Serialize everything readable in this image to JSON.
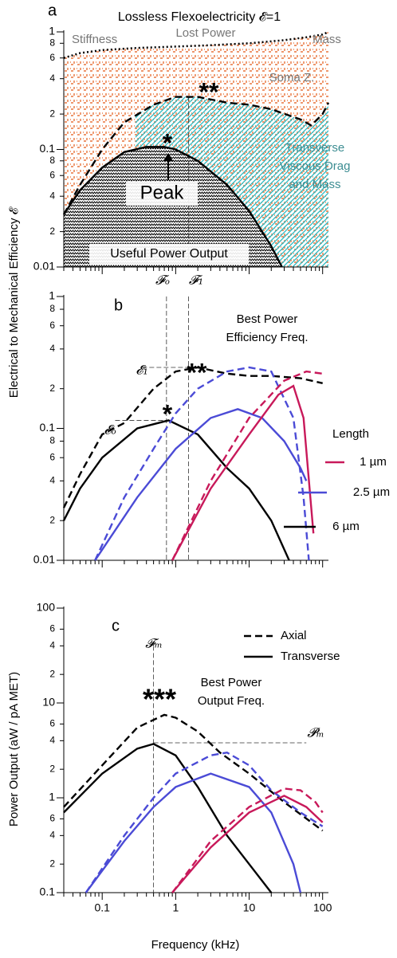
{
  "chart_data": [
    {
      "type": "line",
      "panel": "a",
      "title": "Lossless Flexoelectricity 𝓔=1",
      "ylabel": "Electrical to Mechanical Efficiency 𝓔",
      "xscale": "log",
      "yscale": "log",
      "xlim": [
        0.03,
        120
      ],
      "ylim": [
        0.01,
        1
      ],
      "xticks": [
        0.1,
        1,
        10,
        100
      ],
      "xminorticks": [
        0.03,
        0.04,
        0.05,
        0.06,
        0.07,
        0.08,
        0.09,
        0.2,
        0.3,
        0.4,
        0.5,
        0.6,
        0.7,
        0.8,
        0.9,
        2,
        3,
        4,
        5,
        6,
        7,
        8,
        9,
        20,
        30,
        40,
        50,
        60,
        70,
        80,
        90
      ],
      "yticks": [
        0.01,
        {
          "value": 0.02,
          "label": "2"
        },
        {
          "value": 0.04,
          "label": "4"
        },
        {
          "value": 0.06,
          "label": "6"
        },
        {
          "value": 0.08,
          "label": "8"
        },
        0.1,
        {
          "value": 0.2,
          "label": "2"
        },
        {
          "value": 0.4,
          "label": "4"
        },
        {
          "value": 0.6,
          "label": "6"
        },
        {
          "value": 0.8,
          "label": "8"
        },
        1
      ],
      "series": [
        {
          "color": "#000000",
          "style": "dotted",
          "fill": "#e8743b",
          "x": [
            0.03,
            0.05,
            0.1,
            0.3,
            1,
            3,
            10,
            30,
            60,
            100,
            120
          ],
          "values": [
            0.6,
            0.66,
            0.7,
            0.73,
            0.75,
            0.77,
            0.8,
            0.85,
            0.9,
            0.95,
            1
          ]
        },
        {
          "color": "#000000",
          "style": "dashed",
          "fill": "#2bb8c0",
          "x": [
            0.03,
            0.05,
            0.1,
            0.2,
            0.5,
            1,
            2,
            5,
            10,
            20,
            50,
            70,
            100,
            120
          ],
          "values": [
            0.028,
            0.05,
            0.1,
            0.17,
            0.24,
            0.28,
            0.28,
            0.25,
            0.24,
            0.22,
            0.18,
            0.16,
            0.2,
            0.25
          ]
        },
        {
          "color": "#000000",
          "style": "solid",
          "fill": "#000000",
          "x": [
            0.03,
            0.05,
            0.1,
            0.2,
            0.4,
            0.7,
            1,
            2,
            5,
            10,
            20,
            28
          ],
          "values": [
            0.028,
            0.045,
            0.07,
            0.095,
            0.105,
            0.105,
            0.1,
            0.08,
            0.05,
            0.03,
            0.015,
            0.01
          ]
        }
      ],
      "guides": [
        {
          "x": [
            1.5,
            1.5
          ],
          "y": [
            0.28,
            0.01
          ]
        }
      ],
      "annotations": [
        "Stiffness",
        "Lost Power",
        "Mass",
        "Soma Z.",
        "**",
        "*",
        "Transverse",
        "Viscous Drag",
        "and Mass",
        "Peak",
        "Useful Power Output"
      ]
    },
    {
      "type": "line",
      "panel": "b",
      "xscale": "log",
      "yscale": "log",
      "xlim": [
        0.03,
        120
      ],
      "ylim": [
        0.01,
        1
      ],
      "xticks": [
        0.1,
        1,
        10,
        100
      ],
      "xminorticks": [
        0.03,
        0.04,
        0.05,
        0.06,
        0.07,
        0.08,
        0.09,
        0.2,
        0.3,
        0.4,
        0.5,
        0.6,
        0.7,
        0.8,
        0.9,
        2,
        3,
        4,
        5,
        6,
        7,
        8,
        9,
        20,
        30,
        40,
        50,
        60,
        70,
        80,
        90
      ],
      "yticks": [
        0.01,
        {
          "value": 0.02,
          "label": "2"
        },
        {
          "value": 0.04,
          "label": "4"
        },
        {
          "value": 0.06,
          "label": "6"
        },
        {
          "value": 0.08,
          "label": "8"
        },
        0.1,
        {
          "value": 0.2,
          "label": "2"
        },
        {
          "value": 0.4,
          "label": "4"
        },
        {
          "value": 0.6,
          "label": "6"
        },
        {
          "value": 0.8,
          "label": "8"
        },
        1
      ],
      "series": [
        {
          "color": "#000000",
          "style": "dashed",
          "x": [
            0.03,
            0.05,
            0.1,
            0.2,
            0.5,
            1,
            2,
            5,
            10,
            20,
            50,
            100
          ],
          "values": [
            0.025,
            0.045,
            0.09,
            0.11,
            0.2,
            0.27,
            0.29,
            0.26,
            0.25,
            0.25,
            0.24,
            0.22
          ]
        },
        {
          "name": "6 µm",
          "color": "#000000",
          "style": "solid",
          "x": [
            0.03,
            0.05,
            0.1,
            0.3,
            0.8,
            2,
            5,
            10,
            20,
            35
          ],
          "values": [
            0.02,
            0.035,
            0.06,
            0.1,
            0.115,
            0.09,
            0.05,
            0.035,
            0.02,
            0.01
          ]
        },
        {
          "color": "#4b4bd6",
          "style": "dashed",
          "x": [
            0.08,
            0.2,
            0.5,
            1,
            2,
            5,
            10,
            20,
            40,
            55,
            65
          ],
          "values": [
            0.01,
            0.03,
            0.07,
            0.13,
            0.2,
            0.27,
            0.29,
            0.27,
            0.12,
            0.03,
            0.01
          ]
        },
        {
          "name": "2.5 µm",
          "color": "#4b4bd6",
          "style": "solid",
          "x": [
            0.08,
            0.3,
            1,
            3,
            7,
            15,
            30,
            50,
            60
          ],
          "values": [
            0.01,
            0.03,
            0.07,
            0.12,
            0.14,
            0.12,
            0.08,
            0.05,
            0.04
          ]
        },
        {
          "color": "#c8195a",
          "style": "dashed",
          "x": [
            0.9,
            3,
            10,
            30,
            60,
            100
          ],
          "values": [
            0.01,
            0.04,
            0.12,
            0.23,
            0.27,
            0.26
          ]
        },
        {
          "name": "1 µm",
          "color": "#c8195a",
          "style": "solid",
          "x": [
            0.9,
            3,
            10,
            25,
            40,
            55,
            70,
            75
          ],
          "values": [
            0.01,
            0.035,
            0.09,
            0.18,
            0.21,
            0.12,
            0.025,
            0.016
          ]
        }
      ],
      "guides": [
        {
          "x": [
            0.75,
            0.75
          ],
          "y": [
            1,
            0.01
          ]
        },
        {
          "x": [
            1.5,
            1.5
          ],
          "y": [
            1,
            0.01
          ]
        },
        {
          "x": [
            0.35,
            1.8
          ],
          "y": [
            0.29,
            0.29
          ]
        },
        {
          "x": [
            0.15,
            0.75
          ],
          "y": [
            0.115,
            0.115
          ]
        }
      ],
      "annotations": [
        "𝓕ₒ",
        "𝓕₁",
        "Best Power",
        "Efficiency Freq.",
        "𝓔₁",
        "**",
        "𝓔ₒ",
        "*",
        "Length"
      ]
    },
    {
      "type": "line",
      "panel": "c",
      "ylabel": "Power Output (aW / pA MET)",
      "xlabel": "Frequency (kHz)",
      "xscale": "log",
      "yscale": "log",
      "xlim": [
        0.03,
        120
      ],
      "ylim": [
        0.1,
        100
      ],
      "xticks": [
        0.1,
        1,
        10,
        100
      ],
      "xminorticks": [
        0.03,
        0.04,
        0.05,
        0.06,
        0.07,
        0.08,
        0.09,
        0.2,
        0.3,
        0.4,
        0.5,
        0.6,
        0.7,
        0.8,
        0.9,
        2,
        3,
        4,
        5,
        6,
        7,
        8,
        9,
        20,
        30,
        40,
        50,
        60,
        70,
        80,
        90
      ],
      "yticks": [
        0.1,
        {
          "value": 0.2,
          "label": "2"
        },
        {
          "value": 0.4,
          "label": "4"
        },
        {
          "value": 0.6,
          "label": "6"
        },
        1,
        {
          "value": 2,
          "label": "2"
        },
        {
          "value": 4,
          "label": "4"
        },
        {
          "value": 6,
          "label": "6"
        },
        10,
        {
          "value": 20,
          "label": "2"
        },
        {
          "value": 40,
          "label": "4"
        },
        {
          "value": 60,
          "label": "6"
        },
        100
      ],
      "legend": [
        {
          "label": "Axial",
          "style": "dashed"
        },
        {
          "label": "Transverse",
          "style": "solid"
        }
      ],
      "series": [
        {
          "color": "#000000",
          "style": "dashed",
          "x": [
            0.03,
            0.1,
            0.3,
            0.7,
            1,
            2,
            4,
            10,
            30,
            100
          ],
          "values": [
            0.8,
            2.2,
            5.5,
            7.5,
            7,
            5,
            3,
            1.8,
            0.9,
            0.45
          ]
        },
        {
          "color": "#000000",
          "style": "solid",
          "x": [
            0.03,
            0.1,
            0.3,
            0.5,
            1,
            2,
            5,
            10,
            20
          ],
          "values": [
            0.7,
            1.8,
            3.3,
            3.7,
            2.8,
            1.3,
            0.4,
            0.2,
            0.1
          ]
        },
        {
          "color": "#4b4bd6",
          "style": "dashed",
          "x": [
            0.06,
            0.2,
            0.5,
            1,
            3,
            5,
            10,
            20,
            50,
            100
          ],
          "values": [
            0.1,
            0.4,
            1,
            1.8,
            2.8,
            3,
            2.2,
            1.2,
            0.7,
            0.5
          ]
        },
        {
          "color": "#4b4bd6",
          "style": "solid",
          "x": [
            0.06,
            0.2,
            0.5,
            1,
            3,
            10,
            20,
            40,
            50
          ],
          "values": [
            0.1,
            0.35,
            0.8,
            1.3,
            1.8,
            1.3,
            0.7,
            0.2,
            0.1
          ]
        },
        {
          "color": "#c8195a",
          "style": "dashed",
          "x": [
            0.9,
            3,
            10,
            30,
            50,
            80,
            100
          ],
          "values": [
            0.1,
            0.35,
            0.8,
            1.25,
            1.2,
            0.9,
            0.7
          ]
        },
        {
          "color": "#c8195a",
          "style": "solid",
          "x": [
            0.9,
            3,
            10,
            30,
            60,
            100
          ],
          "values": [
            0.1,
            0.3,
            0.7,
            1.05,
            0.8,
            0.55
          ]
        }
      ],
      "guides": [
        {
          "x": [
            0.5,
            0.5
          ],
          "y": [
            40,
            0.1
          ]
        },
        {
          "x": [
            0.5,
            60
          ],
          "y": [
            3.8,
            3.8
          ]
        }
      ],
      "annotations": [
        "𝓕ₘ",
        "***",
        "Best Power",
        "Output Freq.",
        "𝓟ₘ"
      ]
    }
  ]
}
